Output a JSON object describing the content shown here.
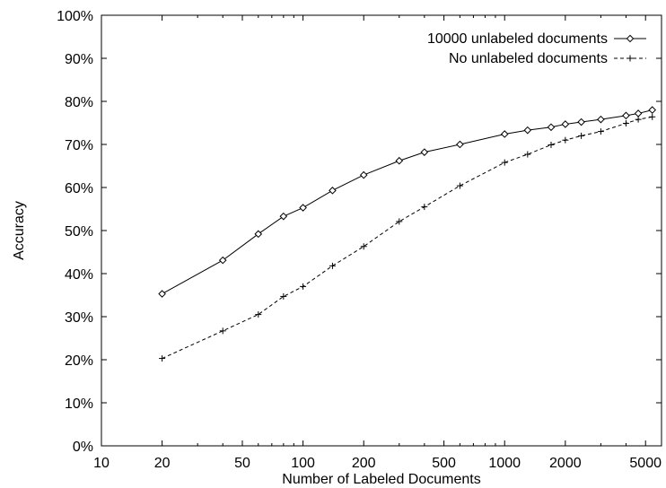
{
  "chart_data": {
    "type": "line",
    "xscale": "log",
    "xlabel": "Number of Labeled Documents",
    "ylabel": "Accuracy",
    "xlim": [
      10,
      6000
    ],
    "ylim": [
      0,
      100
    ],
    "xticks": [
      10,
      20,
      50,
      100,
      200,
      500,
      1000,
      2000,
      5000
    ],
    "xtick_labels": [
      "10",
      "20",
      "50",
      "100",
      "200",
      "500",
      "1000",
      "2000",
      "5000"
    ],
    "yticks": [
      0,
      10,
      20,
      30,
      40,
      50,
      60,
      70,
      80,
      90,
      100
    ],
    "ytick_labels": [
      "0%",
      "10%",
      "20%",
      "30%",
      "40%",
      "50%",
      "60%",
      "70%",
      "80%",
      "90%",
      "100%"
    ],
    "grid": false,
    "legend_position": "top-right",
    "series": [
      {
        "name": "10000 unlabeled documents",
        "marker": "diamond",
        "line_style": "solid",
        "x": [
          20,
          40,
          60,
          80,
          100,
          140,
          200,
          300,
          400,
          600,
          1000,
          1300,
          1700,
          2000,
          2400,
          3000,
          4000,
          4600,
          5400
        ],
        "y": [
          35.3,
          43.1,
          49.2,
          53.3,
          55.3,
          59.3,
          62.9,
          66.2,
          68.2,
          70.0,
          72.4,
          73.3,
          74.0,
          74.7,
          75.2,
          75.8,
          76.7,
          77.2,
          78.0
        ]
      },
      {
        "name": "No unlabeled documents",
        "marker": "plus",
        "line_style": "dashed",
        "x": [
          20,
          40,
          60,
          80,
          100,
          140,
          200,
          300,
          400,
          600,
          1000,
          1300,
          1700,
          2000,
          2400,
          3000,
          4000,
          4600,
          5400
        ],
        "y": [
          20.3,
          26.7,
          30.5,
          34.7,
          37.0,
          41.8,
          46.3,
          52.1,
          55.5,
          60.4,
          65.8,
          67.7,
          69.9,
          71.0,
          72.0,
          73.0,
          74.9,
          75.8,
          76.4
        ]
      }
    ]
  }
}
